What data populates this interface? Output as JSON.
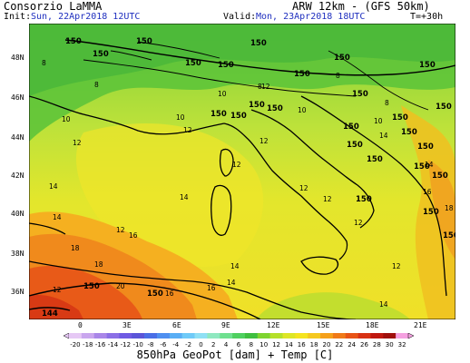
{
  "header": {
    "org": "Consorzio LaMMA",
    "model": "ARW 12km - (GFS 50km)",
    "init_label": "Init:",
    "init_value": "Sun, 22Apr2018 12UTC",
    "valid_label": "Valid:",
    "valid_value": "Mon, 23Apr2018 18UTC",
    "step": "T=+30h"
  },
  "axes": {
    "lat_labels": [
      "48N",
      "46N",
      "44N",
      "42N",
      "40N",
      "38N",
      "36N"
    ],
    "lon_labels": [
      "0",
      "3E",
      "6E",
      "9E",
      "12E",
      "15E",
      "18E",
      "21E"
    ]
  },
  "colorbar": {
    "ticks": [
      "-20",
      "-18",
      "-16",
      "-14",
      "-12",
      "-10",
      "-8",
      "-6",
      "-4",
      "-2",
      "0",
      "2",
      "4",
      "6",
      "8",
      "10",
      "12",
      "14",
      "16",
      "18",
      "20",
      "22",
      "24",
      "26",
      "28",
      "30",
      "32"
    ],
    "colors": [
      "#e6c8f5",
      "#c9a6ee",
      "#a986e8",
      "#8b6fe6",
      "#6f5ae3",
      "#5b55d8",
      "#4a6ee6",
      "#4f8ff0",
      "#59aef5",
      "#6fcaf8",
      "#8fe0f5",
      "#8fe8c0",
      "#6fe08f",
      "#4fd060",
      "#3fbf40",
      "#7fd430",
      "#b5e02a",
      "#dde626",
      "#f5e41f",
      "#f5c81f",
      "#f5a01a",
      "#f07a18",
      "#e85416",
      "#d83214",
      "#c01810",
      "#a0100c",
      "#f5a0e0"
    ]
  },
  "footer": "850hPa GeoPot [dam] + Temp [C]",
  "map": {
    "contour_labels": [
      "150",
      "150",
      "150",
      "150",
      "150",
      "150",
      "150",
      "150",
      "150",
      "150",
      "150",
      "150",
      "150",
      "150",
      "150",
      "150",
      "150",
      "150",
      "150",
      "150",
      "150",
      "150",
      "150",
      "150",
      "150",
      "150",
      "150",
      "150",
      "144"
    ],
    "temp_labels": [
      "8",
      "8",
      "8",
      "8",
      "8",
      "10",
      "10",
      "10",
      "10",
      "10",
      "12",
      "12",
      "12",
      "12",
      "12",
      "12",
      "12",
      "12",
      "12",
      "12",
      "12",
      "14",
      "14",
      "14",
      "14",
      "14",
      "14",
      "14",
      "14",
      "16",
      "16",
      "16",
      "16",
      "18",
      "18",
      "18",
      "20"
    ]
  }
}
